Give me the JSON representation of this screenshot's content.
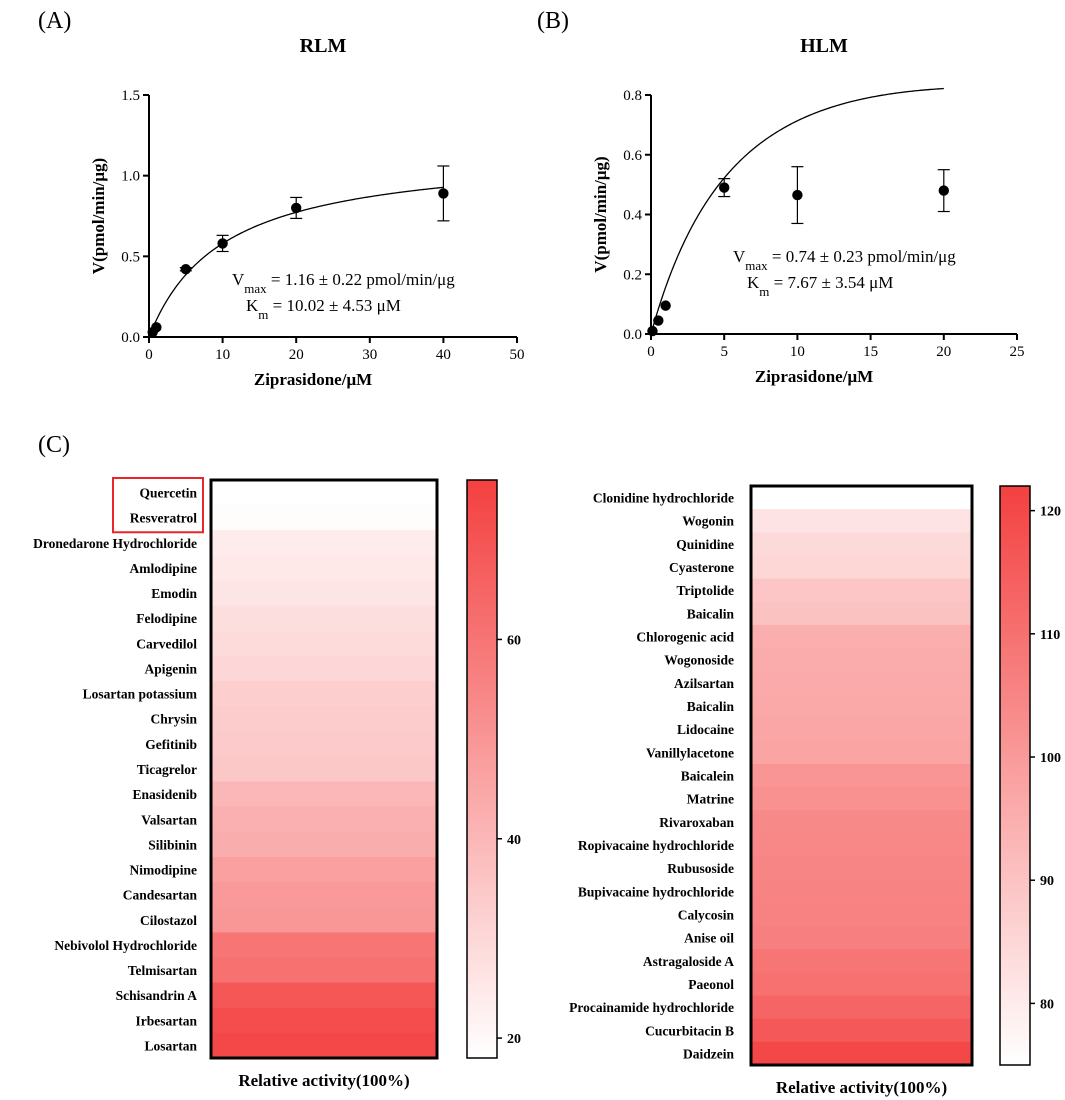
{
  "chart_data": [
    {
      "type": "scatter",
      "panel_label": "(A)",
      "title": "RLM",
      "xlabel": "Ziprasidone/μM",
      "ylabel": "V(pmol/min/μg)",
      "xlim": [
        0,
        50
      ],
      "ylim": [
        0,
        1.5
      ],
      "xticks": [
        "0",
        "10",
        "20",
        "30",
        "40",
        "50"
      ],
      "yticks": [
        "0.0",
        "0.5",
        "1.0",
        "1.5"
      ],
      "points": [
        {
          "x": 0.5,
          "y": 0.03,
          "err": 0
        },
        {
          "x": 1,
          "y": 0.06,
          "err": 0
        },
        {
          "x": 5,
          "y": 0.42,
          "err": 0.01
        },
        {
          "x": 10,
          "y": 0.58,
          "err": 0.05
        },
        {
          "x": 20,
          "y": 0.8,
          "err": 0.065
        },
        {
          "x": 40,
          "y": 0.89,
          "err": 0.17
        }
      ],
      "fit": {
        "model": "michaelis-menten",
        "vmax": 1.16,
        "km": 10.02
      },
      "annotation": {
        "vmax_text": "1.16 ± 0.22 pmol/min/μg",
        "km_text": "10.02 ± 4.53 μM",
        "vmax_sym": "V",
        "vmax_sub": "max",
        "km_sym": "K",
        "km_sub": "m"
      }
    },
    {
      "type": "scatter",
      "panel_label": "(B)",
      "title": "HLM",
      "xlabel": "Ziprasidone/μM",
      "ylabel": "V(pmol/min/μg)",
      "xlim": [
        0,
        25
      ],
      "ylim": [
        0,
        0.8
      ],
      "xticks": [
        "0",
        "5",
        "10",
        "15",
        "20",
        "25"
      ],
      "yticks": [
        "0.0",
        "0.2",
        "0.4",
        "0.6",
        "0.8"
      ],
      "points": [
        {
          "x": 0.1,
          "y": 0.01,
          "err": 0
        },
        {
          "x": 0.5,
          "y": 0.045,
          "err": 0
        },
        {
          "x": 1,
          "y": 0.095,
          "err": 0
        },
        {
          "x": 5,
          "y": 0.49,
          "err": 0.03
        },
        {
          "x": 10,
          "y": 0.465,
          "err": 0.095
        },
        {
          "x": 20,
          "y": 0.48,
          "err": 0.07
        }
      ],
      "fit": {
        "model": "substrate-inhibition",
        "vmax": 0.74,
        "km": 7.67
      },
      "annotation": {
        "vmax_text": "0.74 ± 0.23 pmol/min/μg",
        "km_text": "7.67 ± 3.54 μM",
        "vmax_sym": "V",
        "vmax_sub": "max",
        "km_sym": "K",
        "km_sub": "m"
      }
    },
    {
      "type": "heatmap",
      "panel_label": "(C)",
      "xlabel": "Relative activity(100%)",
      "highlighted": [
        "Quercetin",
        "Resveratrol"
      ],
      "colorbar": {
        "min": 18,
        "max": 76,
        "ticks": [
          20,
          40,
          60
        ]
      },
      "rows": [
        {
          "label": "Quercetin",
          "value": 18
        },
        {
          "label": "Resveratrol",
          "value": 19
        },
        {
          "label": "Dronedarone Hydrochloride",
          "value": 24
        },
        {
          "label": "Amlodipine",
          "value": 25
        },
        {
          "label": "Emodin",
          "value": 26
        },
        {
          "label": "Felodipine",
          "value": 28
        },
        {
          "label": "Carvedilol",
          "value": 29
        },
        {
          "label": "Apigenin",
          "value": 30
        },
        {
          "label": "Losartan potassium",
          "value": 33
        },
        {
          "label": "Chrysin",
          "value": 33.5
        },
        {
          "label": "Gefitinib",
          "value": 34
        },
        {
          "label": "Ticagrelor",
          "value": 35
        },
        {
          "label": "Enasidenib",
          "value": 40
        },
        {
          "label": "Valsartan",
          "value": 42
        },
        {
          "label": "Silibinin",
          "value": 43
        },
        {
          "label": "Nimodipine",
          "value": 47
        },
        {
          "label": "Candesartan",
          "value": 49
        },
        {
          "label": "Cilostazol",
          "value": 50
        },
        {
          "label": "Nebivolol Hydrochloride",
          "value": 60
        },
        {
          "label": "Telmisartan",
          "value": 61
        },
        {
          "label": "Schisandrin A",
          "value": 69
        },
        {
          "label": "Irbesartan",
          "value": 72
        },
        {
          "label": "Losartan",
          "value": 74
        }
      ]
    },
    {
      "type": "heatmap",
      "xlabel": "Relative activity(100%)",
      "colorbar": {
        "min": 75,
        "max": 122,
        "ticks": [
          80,
          90,
          100,
          110,
          120
        ]
      },
      "rows": [
        {
          "label": "Clonidine hydrochloride",
          "value": 75
        },
        {
          "label": "Wogonin",
          "value": 82
        },
        {
          "label": "Quinidine",
          "value": 84
        },
        {
          "label": "Cyasterone",
          "value": 85
        },
        {
          "label": "Triptolide",
          "value": 89
        },
        {
          "label": "Baicalin",
          "value": 90
        },
        {
          "label": "Chlorogenic acid",
          "value": 95
        },
        {
          "label": "Wogonoside",
          "value": 95.5
        },
        {
          "label": "Azilsartan",
          "value": 96
        },
        {
          "label": "Baicalin",
          "value": 96.5
        },
        {
          "label": "Lidocaine",
          "value": 97
        },
        {
          "label": "Vanillylacetone",
          "value": 97.5
        },
        {
          "label": "Baicalein",
          "value": 101
        },
        {
          "label": "Matrine",
          "value": 102
        },
        {
          "label": "Rivaroxaban",
          "value": 104
        },
        {
          "label": "Ropivacaine hydrochloride",
          "value": 104.5
        },
        {
          "label": "Rubusoside",
          "value": 105
        },
        {
          "label": "Bupivacaine hydrochloride",
          "value": 105.5
        },
        {
          "label": "Calycosin",
          "value": 106
        },
        {
          "label": "Anise oil",
          "value": 106.5
        },
        {
          "label": "Astragaloside A",
          "value": 109
        },
        {
          "label": "Paeonol",
          "value": 110
        },
        {
          "label": "Procainamide hydrochloride",
          "value": 113
        },
        {
          "label": "Cucurbitacin B",
          "value": 116
        },
        {
          "label": "Daidzein",
          "value": 120
        }
      ]
    }
  ]
}
